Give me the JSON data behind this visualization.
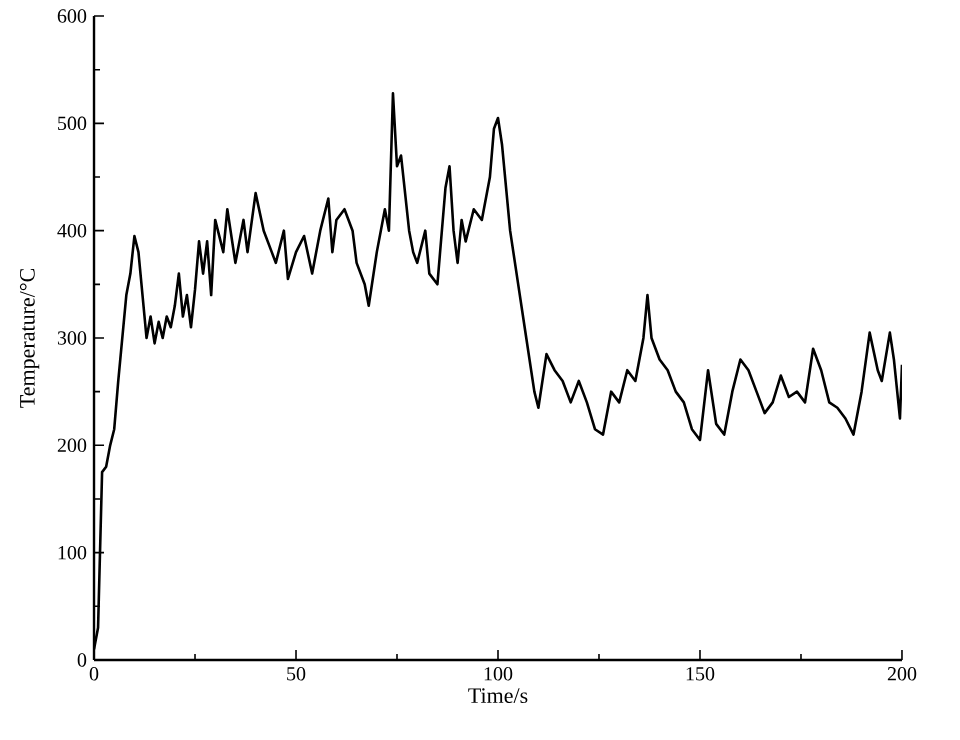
{
  "chart_data": {
    "type": "line",
    "xlabel": "Time/s",
    "ylabel": "Temperature/°C",
    "xlim": [
      0,
      200
    ],
    "ylim": [
      0,
      600
    ],
    "xticks": [
      0,
      50,
      100,
      150,
      200
    ],
    "yticks": [
      0,
      100,
      200,
      300,
      400,
      500,
      600
    ],
    "grid": false,
    "marker": "none",
    "line_style": "solid",
    "series": [
      {
        "color": "#000000",
        "x": [
          0,
          1,
          2,
          3,
          4,
          5,
          6,
          7,
          8,
          9,
          10,
          11,
          12,
          13,
          14,
          15,
          16,
          17,
          18,
          19,
          20,
          21,
          22,
          23,
          24,
          25,
          26,
          27,
          28,
          29,
          30,
          32,
          33,
          35,
          37,
          38,
          40,
          42,
          44,
          45,
          47,
          48,
          50,
          52,
          54,
          56,
          58,
          59,
          60,
          62,
          64,
          65,
          67,
          68,
          70,
          72,
          73,
          74,
          75,
          76,
          78,
          79,
          80,
          82,
          83,
          85,
          87,
          88,
          89,
          90,
          91,
          92,
          94,
          96,
          98,
          99,
          100,
          101,
          103,
          105,
          107,
          109,
          110,
          112,
          114,
          116,
          118,
          120,
          122,
          124,
          126,
          128,
          130,
          132,
          134,
          136,
          137,
          138,
          140,
          142,
          144,
          146,
          148,
          150,
          152,
          154,
          156,
          158,
          160,
          162,
          164,
          166,
          168,
          170,
          172,
          174,
          176,
          178,
          180,
          182,
          184,
          186,
          188,
          190,
          192,
          194,
          195,
          197,
          198,
          199.5,
          200
        ],
        "values": [
          10,
          30,
          175,
          180,
          200,
          215,
          260,
          300,
          340,
          360,
          395,
          380,
          340,
          300,
          320,
          295,
          315,
          300,
          320,
          310,
          330,
          360,
          320,
          340,
          310,
          345,
          390,
          360,
          390,
          340,
          410,
          380,
          420,
          370,
          410,
          380,
          435,
          400,
          380,
          370,
          400,
          355,
          380,
          395,
          360,
          400,
          430,
          380,
          410,
          420,
          400,
          370,
          350,
          330,
          380,
          420,
          400,
          528,
          460,
          470,
          400,
          380,
          370,
          400,
          360,
          350,
          440,
          460,
          400,
          370,
          410,
          390,
          420,
          410,
          450,
          495,
          505,
          480,
          400,
          350,
          300,
          250,
          235,
          285,
          270,
          260,
          240,
          260,
          240,
          215,
          210,
          250,
          240,
          270,
          260,
          300,
          340,
          300,
          280,
          270,
          250,
          240,
          215,
          205,
          270,
          220,
          210,
          250,
          280,
          270,
          250,
          230,
          240,
          265,
          245,
          250,
          240,
          290,
          270,
          240,
          235,
          225,
          210,
          250,
          305,
          270,
          260,
          305,
          280,
          225,
          275
        ]
      }
    ]
  }
}
